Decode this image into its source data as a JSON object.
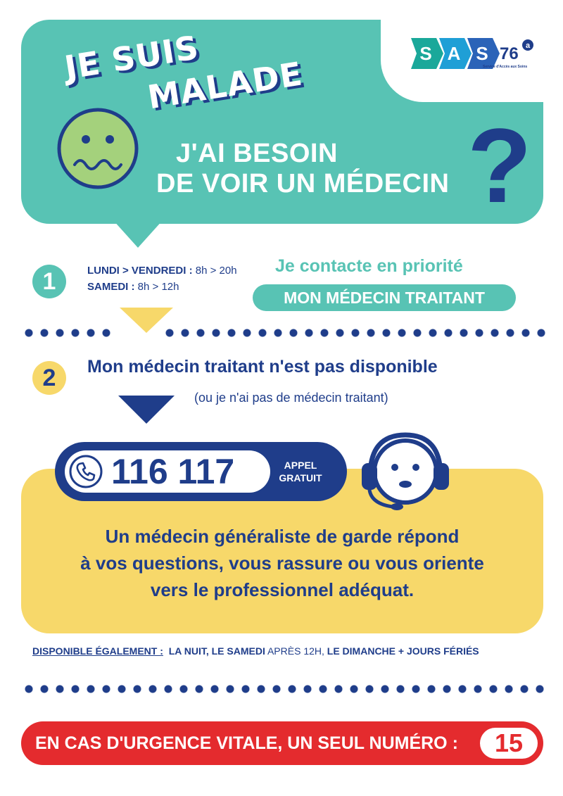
{
  "header": {
    "title_line1": "JE SUIS",
    "title_line2": "MALADE",
    "subtitle_line1": "J'AI BESOIN",
    "subtitle_line2": "DE VOIR UN MÉDECIN",
    "question_mark": "?"
  },
  "logo": {
    "letters": [
      "S",
      "A",
      "S"
    ],
    "number": "76",
    "superscript": "a",
    "tagline": "Service d'Accès aux Soins",
    "colors": [
      "#1aa89a",
      "#1f9fd6",
      "#2b63b8"
    ]
  },
  "step1": {
    "number": "1",
    "hours_line1_label": "LUNDI > VENDREDI :",
    "hours_line1_value": " 8h > 20h",
    "hours_line2_label": "SAMEDI :",
    "hours_line2_value": " 8h > 12h",
    "contact_text": "Je contacte en priorité",
    "doctor_label": "MON MÉDECIN TRAITANT"
  },
  "step2": {
    "number": "2",
    "text": "Mon médecin traitant n'est pas disponible",
    "paren": "(ou je n'ai pas de médecin traitant)"
  },
  "phone": {
    "number": "116 117",
    "appel_line1": "APPEL",
    "appel_line2": "GRATUIT"
  },
  "info": {
    "line1": "Un médecin généraliste de garde répond",
    "line2": "à vos questions, vous rassure ou vous oriente",
    "line3": "vers le professionnel adéquat."
  },
  "availability": {
    "label": "DISPONIBLE ÉGALEMENT :",
    "part1": "LA NUIT, LE SAMEDI",
    "part2": " APRÈS 12H, ",
    "part3": "LE DIMANCHE + JOURS FÉRIÉS"
  },
  "emergency": {
    "text": "EN CAS D'URGENCE VITALE, UN SEUL NUMÉRO :",
    "number": "15"
  },
  "colors": {
    "teal": "#58c3b4",
    "navy": "#1f3d8a",
    "yellow": "#f7d86a",
    "red": "#e42b2e",
    "face_green": "#a4d17c"
  }
}
